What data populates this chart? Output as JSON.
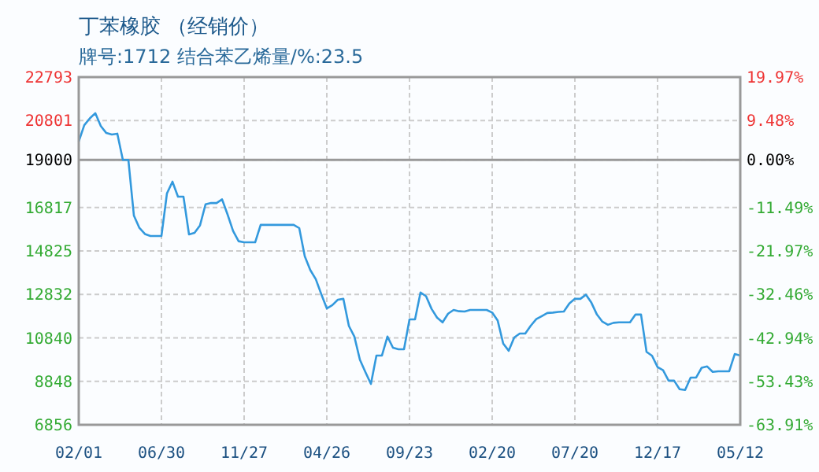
{
  "chart_data": {
    "type": "line",
    "title": "丁苯橡胶 （经销价）",
    "subtitle": "牌号:1712 结合苯乙烯量/%:23.5",
    "categories": [
      "02/01",
      null,
      null,
      null,
      null,
      null,
      null,
      null,
      null,
      null,
      null,
      null,
      null,
      null,
      null,
      "06/30",
      null,
      null,
      null,
      null,
      null,
      null,
      null,
      null,
      null,
      null,
      null,
      null,
      null,
      null,
      "11/27",
      null,
      null,
      null,
      null,
      null,
      null,
      null,
      null,
      null,
      null,
      null,
      null,
      null,
      null,
      "04/26",
      null,
      null,
      null,
      null,
      null,
      null,
      null,
      null,
      null,
      null,
      null,
      null,
      null,
      null,
      "09/23",
      null,
      null,
      null,
      null,
      null,
      null,
      null,
      null,
      null,
      null,
      null,
      null,
      null,
      null,
      "02/20",
      null,
      null,
      null,
      null,
      null,
      null,
      null,
      null,
      null,
      null,
      null,
      null,
      null,
      null,
      "07/20",
      null,
      null,
      null,
      null,
      null,
      null,
      null,
      null,
      null,
      null,
      null,
      null,
      null,
      null,
      "12/17",
      null,
      null,
      null,
      null,
      null,
      null,
      null,
      null,
      null,
      null,
      null,
      null,
      null,
      null,
      "05/12"
    ],
    "ylim": [
      6856,
      22793
    ],
    "yticks": [
      6856,
      8848,
      10840,
      12832,
      14825,
      16817,
      19000,
      20801,
      22793
    ],
    "y2lim": [
      -63.91,
      19.97
    ],
    "y2ticks": [
      {
        "value": -63.91,
        "label": "-63.91%"
      },
      {
        "value": -53.43,
        "label": "-53.43%"
      },
      {
        "value": -42.94,
        "label": "-42.94%"
      },
      {
        "value": -32.46,
        "label": "-32.46%"
      },
      {
        "value": -21.97,
        "label": "-21.97%"
      },
      {
        "value": -11.49,
        "label": "-11.49%"
      },
      {
        "value": 0,
        "label": "0.00%"
      },
      {
        "value": 9.48,
        "label": "9.48%"
      },
      {
        "value": 19.97,
        "label": "19.97%"
      }
    ],
    "grid": true,
    "ref_lines": [
      {
        "axis": "y",
        "value": 19000,
        "color": "#999999"
      }
    ],
    "series": [
      {
        "color": "#3399dd",
        "values": [
          19840,
          20590,
          20900,
          21140,
          20550,
          20230,
          20160,
          20200,
          19000,
          19000,
          16450,
          15880,
          15600,
          15510,
          15510,
          15510,
          17460,
          18000,
          17310,
          17310,
          15580,
          15650,
          16000,
          16960,
          17020,
          17020,
          17190,
          16490,
          15740,
          15270,
          15220,
          15220,
          15220,
          16020,
          16020,
          16020,
          16020,
          16020,
          16020,
          16020,
          15870,
          14580,
          13950,
          13530,
          12840,
          12190,
          12340,
          12590,
          12630,
          11390,
          10900,
          9840,
          9270,
          8730,
          10030,
          10030,
          10900,
          10390,
          10320,
          10320,
          11690,
          11690,
          12920,
          12750,
          12170,
          11770,
          11550,
          11950,
          12120,
          12060,
          12050,
          12120,
          12120,
          12120,
          12120,
          12000,
          11630,
          10580,
          10250,
          10860,
          11040,
          11040,
          11400,
          11700,
          11840,
          11980,
          12000,
          12030,
          12050,
          12420,
          12630,
          12630,
          12820,
          12450,
          11910,
          11580,
          11440,
          11530,
          11550,
          11550,
          11550,
          11910,
          11910,
          10200,
          10020,
          9500,
          9360,
          8880,
          8880,
          8490,
          8450,
          9020,
          9020,
          9470,
          9530,
          9280,
          9310,
          9310,
          9310,
          10100,
          10030
        ]
      }
    ]
  }
}
